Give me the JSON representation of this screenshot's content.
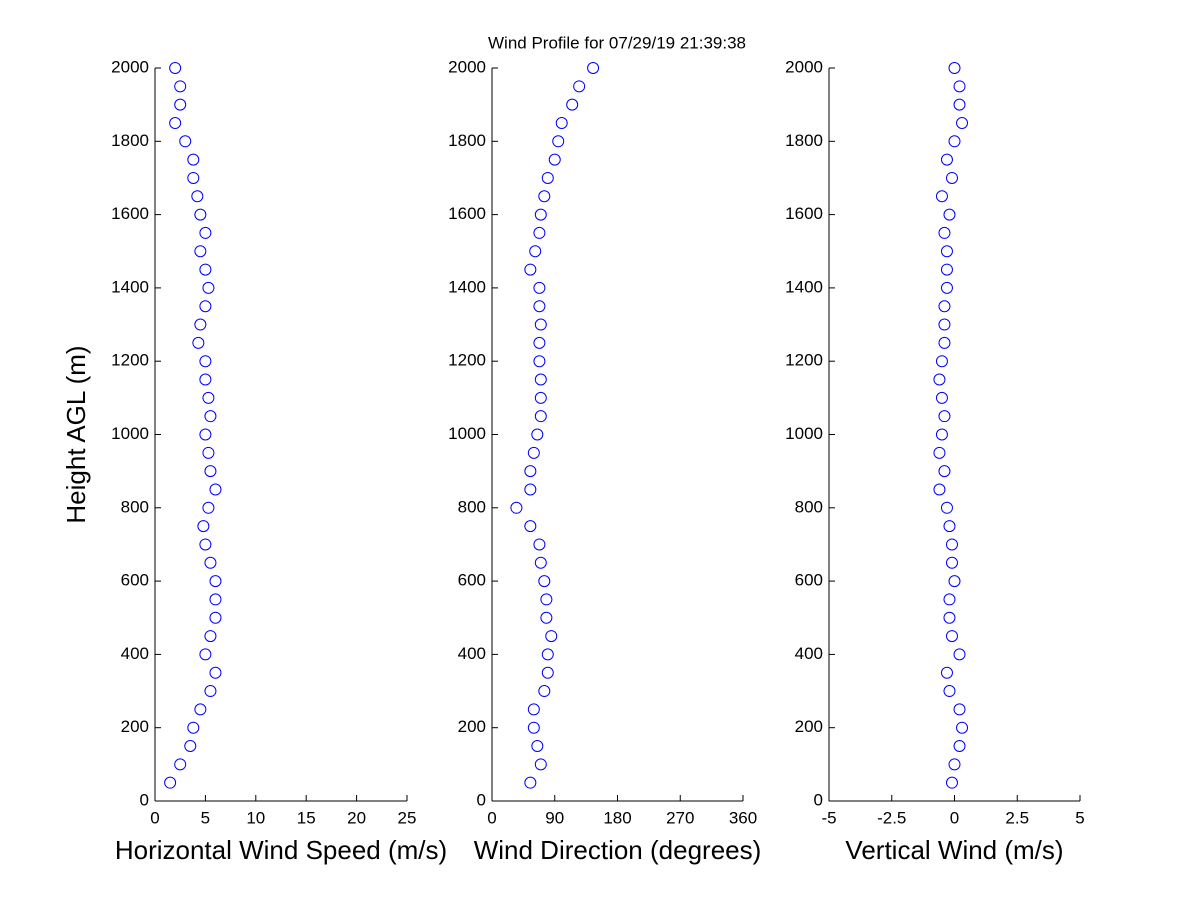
{
  "title": "Wind Profile for  07/29/19 21:39:38",
  "chart_data": [
    {
      "type": "scatter",
      "x_label": "Horizontal Wind Speed (m/s)",
      "y_label": "Height AGL (m)",
      "color": "#0000ff",
      "marker": "circle-open",
      "xlim": [
        0,
        25
      ],
      "xticks": [
        0,
        5,
        10,
        15,
        20,
        25
      ],
      "ylim": [
        0,
        2000
      ],
      "yticks": [
        0,
        200,
        400,
        600,
        800,
        1000,
        1200,
        1400,
        1600,
        1800,
        2000
      ],
      "x": [
        1.5,
        2.5,
        3.5,
        3.8,
        4.5,
        5.5,
        6,
        5,
        5.5,
        6,
        6,
        6,
        5.5,
        5,
        4.8,
        5.3,
        6,
        5.5,
        5.3,
        5,
        5.5,
        5.3,
        5,
        5,
        4.3,
        4.5,
        5,
        5.3,
        5,
        4.5,
        5,
        4.5,
        4.2,
        3.8,
        3.8,
        3,
        2,
        2.5,
        2.5,
        2
      ],
      "y": [
        50,
        100,
        150,
        200,
        250,
        300,
        350,
        400,
        450,
        500,
        550,
        600,
        650,
        700,
        750,
        800,
        850,
        900,
        950,
        1000,
        1050,
        1100,
        1150,
        1200,
        1250,
        1300,
        1350,
        1400,
        1450,
        1500,
        1550,
        1600,
        1650,
        1700,
        1750,
        1800,
        1850,
        1900,
        1950,
        2000
      ]
    },
    {
      "type": "scatter",
      "x_label": "Wind Direction (degrees)",
      "color": "#0000ff",
      "marker": "circle-open",
      "xlim": [
        0,
        360
      ],
      "xticks": [
        0,
        90,
        180,
        270,
        360
      ],
      "ylim": [
        0,
        2000
      ],
      "yticks": [
        0,
        200,
        400,
        600,
        800,
        1000,
        1200,
        1400,
        1600,
        1800,
        2000
      ],
      "x": [
        55,
        70,
        65,
        60,
        60,
        75,
        80,
        80,
        85,
        78,
        78,
        75,
        70,
        68,
        55,
        35,
        55,
        55,
        60,
        65,
        70,
        70,
        70,
        68,
        68,
        70,
        68,
        68,
        55,
        62,
        68,
        70,
        75,
        80,
        90,
        95,
        100,
        115,
        125,
        145
      ],
      "y": [
        50,
        100,
        150,
        200,
        250,
        300,
        350,
        400,
        450,
        500,
        550,
        600,
        650,
        700,
        750,
        800,
        850,
        900,
        950,
        1000,
        1050,
        1100,
        1150,
        1200,
        1250,
        1300,
        1350,
        1400,
        1450,
        1500,
        1550,
        1600,
        1650,
        1700,
        1750,
        1800,
        1850,
        1900,
        1950,
        2000
      ]
    },
    {
      "type": "scatter",
      "x_label": "Vertical Wind (m/s)",
      "color": "#0000ff",
      "marker": "circle-open",
      "xlim": [
        -5,
        5
      ],
      "xticks": [
        -5,
        -2.5,
        0,
        2.5,
        5
      ],
      "ylim": [
        0,
        2000
      ],
      "yticks": [
        0,
        200,
        400,
        600,
        800,
        1000,
        1200,
        1400,
        1600,
        1800,
        2000
      ],
      "x": [
        -0.1,
        0,
        0.2,
        0.3,
        0.2,
        -0.2,
        -0.3,
        0.2,
        -0.1,
        -0.2,
        -0.2,
        0,
        -0.1,
        -0.1,
        -0.2,
        -0.3,
        -0.6,
        -0.4,
        -0.6,
        -0.5,
        -0.4,
        -0.5,
        -0.6,
        -0.5,
        -0.4,
        -0.4,
        -0.4,
        -0.3,
        -0.3,
        -0.3,
        -0.4,
        -0.2,
        -0.5,
        -0.1,
        -0.3,
        0,
        0.3,
        0.2,
        0.2,
        0
      ],
      "y": [
        50,
        100,
        150,
        200,
        250,
        300,
        350,
        400,
        450,
        500,
        550,
        600,
        650,
        700,
        750,
        800,
        850,
        900,
        950,
        1000,
        1050,
        1100,
        1150,
        1200,
        1250,
        1300,
        1350,
        1400,
        1450,
        1500,
        1550,
        1600,
        1650,
        1700,
        1750,
        1800,
        1850,
        1900,
        1950,
        2000
      ]
    }
  ]
}
